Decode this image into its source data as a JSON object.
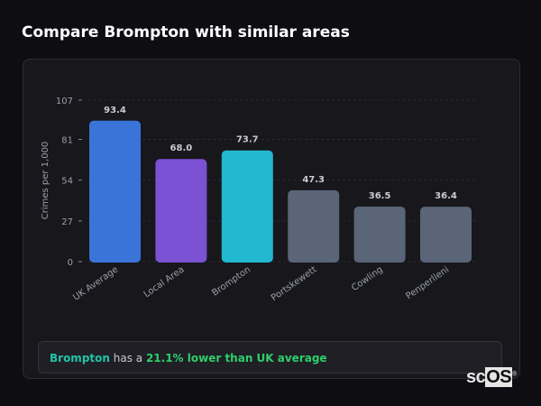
{
  "header": {
    "title": "Compare Brompton with similar areas"
  },
  "chart_data": {
    "type": "bar",
    "title": "",
    "xlabel": "",
    "ylabel": "Crimes per 1,000",
    "ylim": [
      0,
      107
    ],
    "yticks": [
      0,
      27,
      54,
      81,
      107
    ],
    "grid": true,
    "categories": [
      "UK Average",
      "Local Area",
      "Brompton",
      "Portskewett",
      "Cowling",
      "Penperlleni"
    ],
    "values": [
      93.4,
      68.0,
      73.7,
      47.3,
      36.5,
      36.4
    ],
    "value_labels": [
      "93.4",
      "68.0",
      "73.7",
      "47.3",
      "36.5",
      "36.4"
    ],
    "colors": [
      "#3b74d9",
      "#7b52d3",
      "#22b8cf",
      "#5a6578",
      "#5a6578",
      "#5a6578"
    ]
  },
  "insight": {
    "area": "Brompton",
    "middle": " has a ",
    "comparison": "21.1% lower than UK average"
  },
  "watermark": {
    "text": "scOS"
  }
}
